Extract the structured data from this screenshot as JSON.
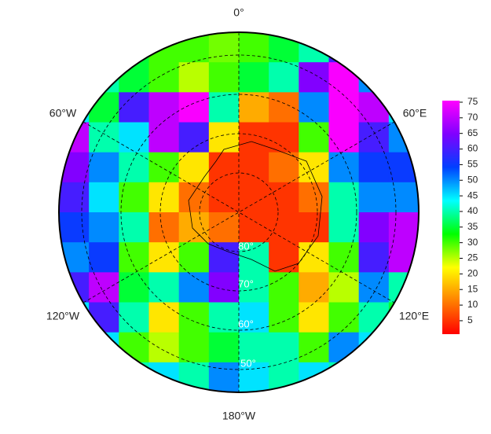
{
  "map": {
    "lon_labels": [
      "0°",
      "60°W",
      "60°E",
      "120°W",
      "120°E",
      "180°W"
    ],
    "lat_labels": [
      "80°",
      "70°",
      "60°",
      "50°"
    ],
    "field": {
      "values": [
        [
          35,
          35,
          35,
          30,
          30,
          28,
          30,
          35,
          40,
          60,
          40,
          35
        ],
        [
          40,
          40,
          35,
          30,
          25,
          30,
          35,
          40,
          65,
          75,
          50,
          40
        ],
        [
          45,
          35,
          60,
          70,
          75,
          40,
          15,
          10,
          50,
          75,
          70,
          45
        ],
        [
          70,
          40,
          45,
          70,
          60,
          20,
          5,
          5,
          30,
          75,
          60,
          50
        ],
        [
          65,
          50,
          40,
          30,
          20,
          5,
          5,
          10,
          20,
          50,
          55,
          55
        ],
        [
          60,
          45,
          30,
          20,
          10,
          5,
          5,
          5,
          10,
          40,
          50,
          50
        ],
        [
          55,
          50,
          40,
          10,
          15,
          10,
          5,
          5,
          5,
          40,
          65,
          70
        ],
        [
          50,
          55,
          30,
          20,
          30,
          60,
          40,
          5,
          20,
          30,
          60,
          70
        ],
        [
          60,
          70,
          35,
          40,
          50,
          65,
          40,
          30,
          15,
          25,
          50,
          40
        ],
        [
          45,
          60,
          40,
          20,
          30,
          40,
          45,
          30,
          20,
          30,
          40,
          35
        ],
        [
          40,
          45,
          30,
          25,
          30,
          35,
          40,
          40,
          30,
          50,
          45,
          40
        ],
        [
          40,
          45,
          40,
          45,
          40,
          50,
          45,
          40,
          45,
          40,
          45,
          40
        ]
      ]
    }
  },
  "colorbar": {
    "clim": [
      0.7,
      75.5
    ],
    "ticks": [
      5,
      10,
      15,
      20,
      25,
      30,
      35,
      40,
      45,
      50,
      55,
      60,
      65,
      70,
      75
    ],
    "colormap": [
      "#ff0000",
      "#ff8000",
      "#ffff00",
      "#00ff00",
      "#00ffff",
      "#0040ff",
      "#8000ff",
      "#ff00ff"
    ]
  }
}
